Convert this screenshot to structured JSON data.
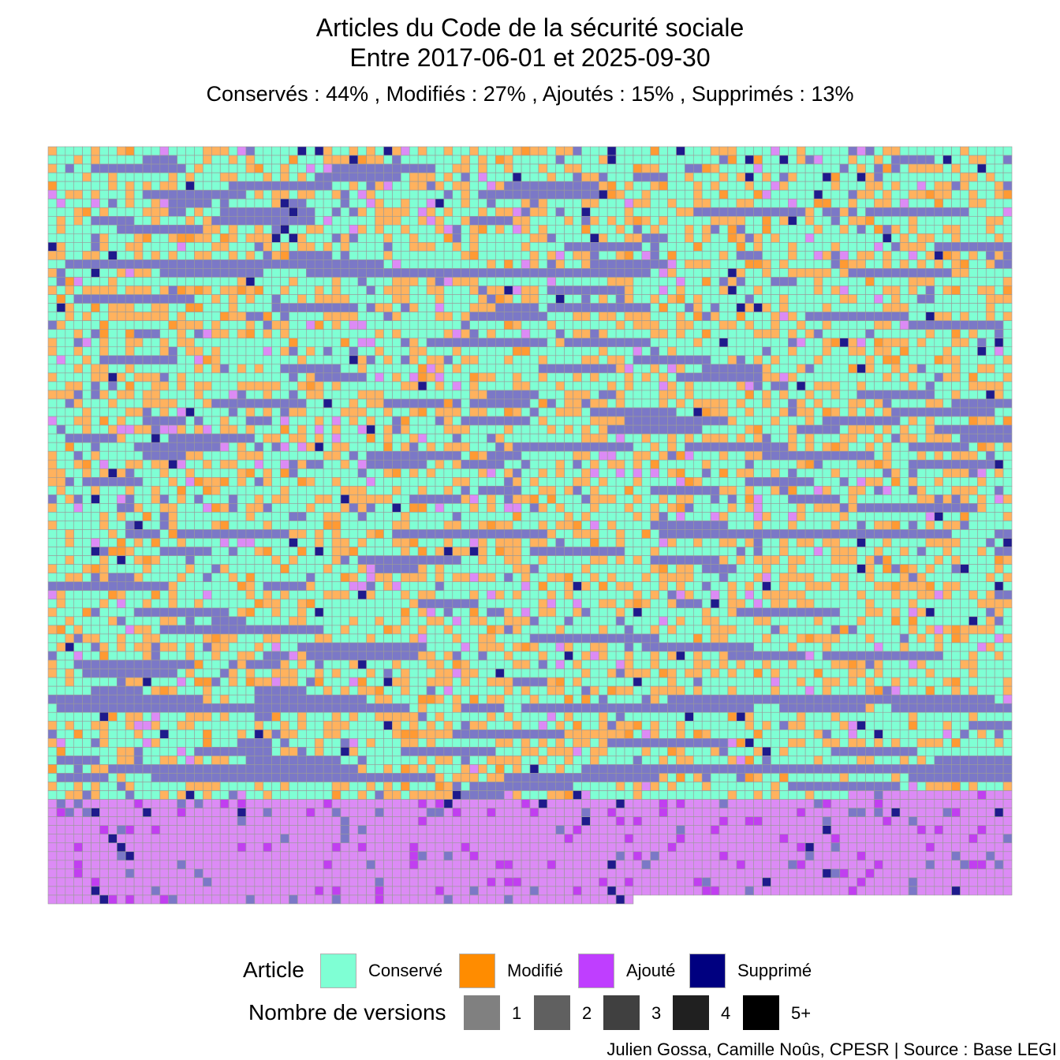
{
  "chart_data": {
    "type": "heatmap",
    "title": "Articles du Code de la sécurité sociale",
    "title_line2": "Entre 2017-06-01 et 2025-09-30",
    "subtitle": "Conservés :  44% , Modifiés :  27% , Ajoutés :  15% , Supprimés :  13%",
    "shares": [
      {
        "category": "Conservés",
        "percent": 44
      },
      {
        "category": "Modifiés",
        "percent": 27
      },
      {
        "category": "Ajoutés",
        "percent": 15
      },
      {
        "category": "Supprimés",
        "percent": 13
      }
    ],
    "grid": {
      "columns": 112,
      "rows": 87,
      "last_row_cells": 68
    },
    "legend_article": {
      "title": "Article",
      "items": [
        {
          "label": "Conservé",
          "color": "#7fffd4"
        },
        {
          "label": "Modifié",
          "color": "#ff8c00"
        },
        {
          "label": "Ajouté",
          "color": "#bf3eff"
        },
        {
          "label": "Supprimé",
          "color": "#000080"
        }
      ]
    },
    "legend_versions": {
      "title": "Nombre de versions",
      "items": [
        {
          "label": "1",
          "color": "#808080"
        },
        {
          "label": "2",
          "color": "#606060"
        },
        {
          "label": "3",
          "color": "#404040"
        },
        {
          "label": "4",
          "color": "#202020"
        },
        {
          "label": "5+",
          "color": "#000000"
        }
      ]
    },
    "caption": "Julien Gossa, Camille Noûs, CPESR  |  Source : Base LEGI"
  }
}
